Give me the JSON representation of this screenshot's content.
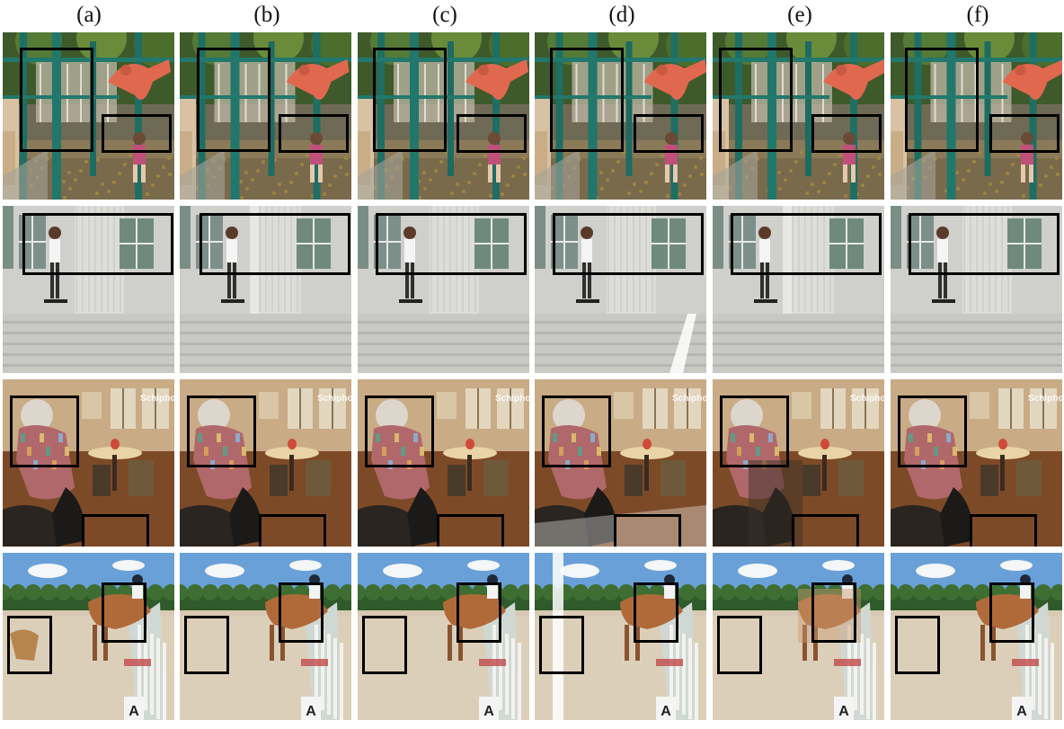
{
  "columns": [
    {
      "label": "(a)"
    },
    {
      "label": "(b)"
    },
    {
      "label": "(c)"
    },
    {
      "label": "(d)"
    },
    {
      "label": "(e)"
    },
    {
      "label": "(f)"
    }
  ],
  "rows": [
    {
      "scene": "playground-dinosaur",
      "watermark": ""
    },
    {
      "scene": "skateboarder-building",
      "watermark": ""
    },
    {
      "scene": "cafe-dancer",
      "watermark": "Schiphol"
    },
    {
      "scene": "horse-show-jump",
      "watermark": ""
    }
  ],
  "signs": {
    "horse_jump_letter": "A"
  },
  "colors": {
    "box": "#000000",
    "background": "#ffffff",
    "label": "#111111"
  }
}
